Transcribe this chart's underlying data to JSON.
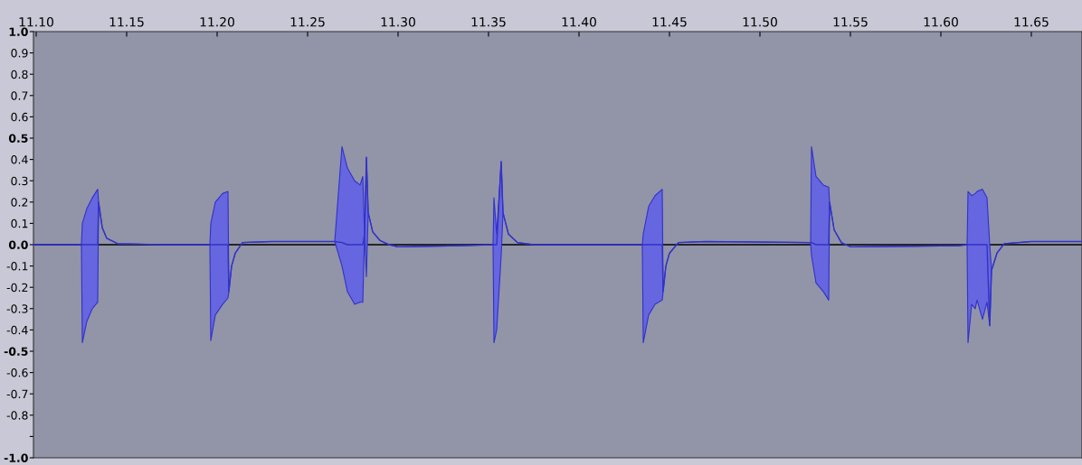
{
  "chart_data": {
    "type": "line",
    "xlim": [
      11.0985,
      11.678
    ],
    "xticks": [
      {
        "value": 11.1,
        "label": "11.10"
      },
      {
        "value": 11.15,
        "label": "11.15"
      },
      {
        "value": 11.2,
        "label": "11.20"
      },
      {
        "value": 11.25,
        "label": "11.25"
      },
      {
        "value": 11.3,
        "label": "11.30"
      },
      {
        "value": 11.35,
        "label": "11.35"
      },
      {
        "value": 11.4,
        "label": "11.40"
      },
      {
        "value": 11.45,
        "label": "11.45"
      },
      {
        "value": 11.5,
        "label": "11.50"
      },
      {
        "value": 11.55,
        "label": "11.55"
      },
      {
        "value": 11.6,
        "label": "11.60"
      },
      {
        "value": 11.65,
        "label": "11.65"
      }
    ],
    "ylim": [
      -1.0,
      1.0
    ],
    "yticks": [
      {
        "value": 1,
        "label": "1.0"
      },
      0.9,
      0.8,
      0.7,
      0.6,
      0.5,
      0.4,
      0.3,
      0.2,
      0.1,
      {
        "value": 0,
        "label": "0.0"
      },
      -0.1,
      -0.2,
      -0.3,
      -0.4,
      -0.5,
      -0.6,
      -0.7,
      -0.8,
      {
        "value": -0.9,
        "label": null
      },
      {
        "value": -1,
        "label": "-1.0"
      }
    ],
    "grid": false,
    "ref_lines": [
      {
        "axis": "y",
        "value": 0,
        "color": "#000000"
      }
    ],
    "series": [
      {
        "color": "#3232c8",
        "x": [
          11.0985,
          11.125,
          11.1255,
          11.128,
          11.131,
          11.134,
          11.1345,
          11.1365,
          11.139,
          11.145,
          11.17,
          11.196,
          11.1965,
          11.199,
          11.203,
          11.206,
          11.2065,
          11.208,
          11.21,
          11.214,
          11.23,
          11.265,
          11.269,
          11.272,
          11.276,
          11.279,
          11.2805,
          11.2815,
          11.2825,
          11.2835,
          11.286,
          11.29,
          11.295,
          11.3,
          11.335,
          11.3525,
          11.353,
          11.3545,
          11.357,
          11.358,
          11.361,
          11.366,
          11.375,
          11.43,
          11.435,
          11.4355,
          11.4385,
          11.442,
          11.446,
          11.4465,
          11.448,
          11.45,
          11.455,
          11.47,
          11.528,
          11.5285,
          11.531,
          11.535,
          11.538,
          11.5385,
          11.541,
          11.545,
          11.55,
          11.61,
          11.6145,
          11.615,
          11.617,
          11.619,
          11.62,
          11.623,
          11.6255,
          11.627,
          11.628,
          11.631,
          11.635,
          11.65,
          11.678
        ],
        "values": [
          0,
          0,
          0,
          0,
          0,
          0,
          0.2,
          0.08,
          0.03,
          0.005,
          0,
          0,
          0,
          0,
          0,
          0,
          -0.22,
          -0.1,
          -0.04,
          0.01,
          0.015,
          0.015,
          0.01,
          0,
          0,
          0,
          0,
          0.05,
          0.41,
          0.15,
          0.06,
          0.02,
          0,
          -0.01,
          -0.005,
          0,
          0,
          0,
          0.39,
          0.15,
          0.05,
          0.01,
          0,
          0,
          0,
          0,
          0,
          0,
          0,
          -0.22,
          -0.1,
          -0.04,
          0.01,
          0.015,
          0.01,
          0.01,
          0,
          0,
          0,
          0.2,
          0.07,
          0.01,
          -0.01,
          -0.005,
          0,
          0,
          0,
          0,
          0,
          0,
          0,
          -0.38,
          -0.12,
          -0.04,
          0.005,
          0.015,
          0.015
        ],
        "lower": [
          0,
          0,
          -0.46,
          -0.36,
          -0.3,
          -0.27,
          0.2,
          0.08,
          0.03,
          0.005,
          0,
          0,
          -0.45,
          -0.33,
          -0.28,
          -0.25,
          -0.22,
          -0.1,
          -0.04,
          0.01,
          0.015,
          0.015,
          -0.1,
          -0.22,
          -0.28,
          -0.27,
          -0.27,
          0.05,
          -0.15,
          0.15,
          0.06,
          0.02,
          0,
          -0.01,
          -0.005,
          0,
          -0.46,
          -0.4,
          -0.05,
          0.15,
          0.05,
          0.01,
          0,
          0,
          0,
          -0.46,
          -0.33,
          -0.28,
          -0.26,
          -0.22,
          -0.1,
          -0.04,
          0.01,
          0.015,
          0.01,
          -0.05,
          -0.18,
          -0.22,
          -0.26,
          0.2,
          0.07,
          0.01,
          -0.01,
          -0.005,
          0,
          -0.46,
          -0.28,
          -0.3,
          -0.26,
          -0.35,
          -0.27,
          -0.38,
          -0.12,
          -0.04,
          0.005,
          0.015,
          0.015
        ],
        "upper": [
          0,
          0,
          0.1,
          0.17,
          0.22,
          0.26,
          0.2,
          0.08,
          0.03,
          0.005,
          0,
          0,
          0.1,
          0.2,
          0.24,
          0.25,
          -0.22,
          -0.1,
          -0.04,
          0.01,
          0.015,
          0.015,
          0.46,
          0.36,
          0.3,
          0.28,
          0.32,
          0.05,
          0.41,
          0.15,
          0.06,
          0.02,
          0,
          -0.01,
          -0.005,
          0,
          0.22,
          0.05,
          0.39,
          0.15,
          0.05,
          0.01,
          0,
          0,
          0,
          0.05,
          0.18,
          0.23,
          0.26,
          -0.22,
          -0.1,
          -0.04,
          0.01,
          0.015,
          0.01,
          0.46,
          0.32,
          0.28,
          0.27,
          0.2,
          0.07,
          0.01,
          -0.01,
          -0.005,
          0,
          0.25,
          0.23,
          0.24,
          0.25,
          0.26,
          0.22,
          0.0,
          -0.12,
          -0.04,
          0.005,
          0.015,
          0.015
        ]
      }
    ]
  }
}
